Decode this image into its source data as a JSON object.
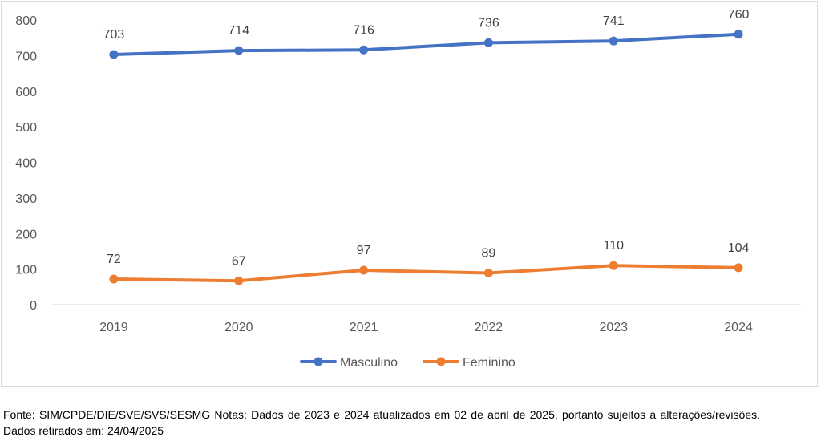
{
  "chart_data": {
    "type": "line",
    "categories": [
      "2019",
      "2020",
      "2021",
      "2022",
      "2023",
      "2024"
    ],
    "series": [
      {
        "name": "Masculino",
        "color": "#4472C4",
        "values": [
          703,
          714,
          716,
          736,
          741,
          760
        ]
      },
      {
        "name": "Feminino",
        "color": "#ED7D31",
        "values": [
          72,
          67,
          97,
          89,
          110,
          104
        ]
      }
    ],
    "ylim": [
      0,
      800
    ],
    "yticks": [
      "0",
      "100",
      "200",
      "300",
      "400",
      "500",
      "600",
      "700",
      "800"
    ],
    "grid": false,
    "legend_position": "bottom",
    "data_labels": true
  },
  "source_note": "Fonte: SIM/CPDE/DIE/SVE/SVS/SESMG Notas: Dados de 2023 e 2024 atualizados em 02 de abril de 2025, portanto sujeitos a alterações/revisões. Dados retirados em: 24/04/2025"
}
